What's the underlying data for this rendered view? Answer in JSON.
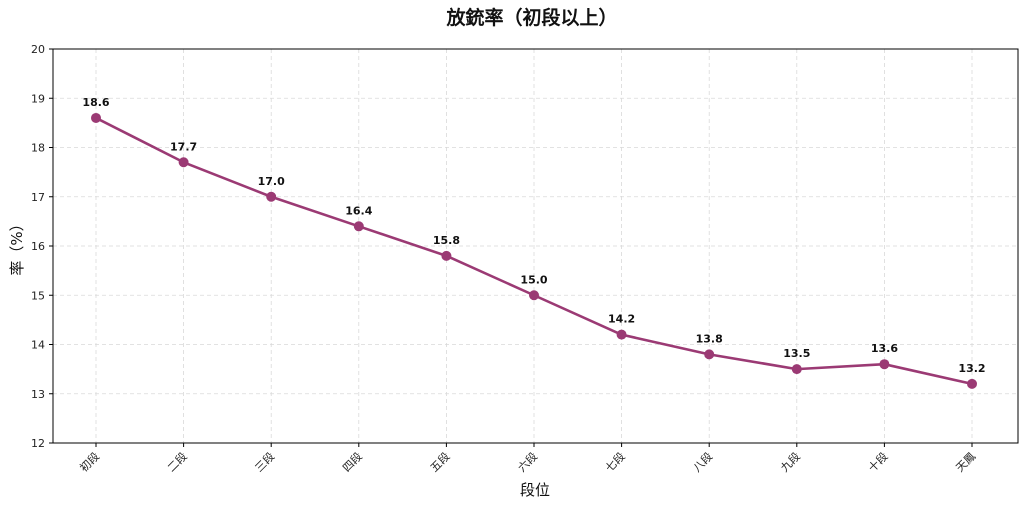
{
  "chart_data": {
    "type": "line",
    "title": "放銃率（初段以上）",
    "xlabel": "段位",
    "ylabel": "率（%）",
    "categories": [
      "初段",
      "二段",
      "三段",
      "四段",
      "五段",
      "六段",
      "七段",
      "八段",
      "九段",
      "十段",
      "天鳳"
    ],
    "series": [
      {
        "values": [
          18.6,
          17.7,
          17.0,
          16.4,
          15.8,
          15.0,
          14.2,
          13.8,
          13.5,
          13.6,
          13.2
        ]
      }
    ],
    "data_labels": [
      "18.6",
      "17.7",
      "17.0",
      "16.4",
      "15.8",
      "15.0",
      "14.2",
      "13.8",
      "13.5",
      "13.6",
      "13.2"
    ],
    "ylim": [
      12,
      20
    ],
    "yticks": [
      12,
      13,
      14,
      15,
      16,
      17,
      18,
      19,
      20
    ],
    "grid": true,
    "legend": false,
    "color": "#9b3a74"
  }
}
